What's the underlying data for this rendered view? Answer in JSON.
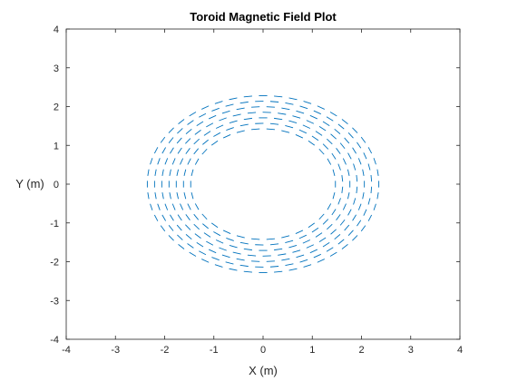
{
  "chart_data": {
    "type": "quiver",
    "title": "Toroid Magnetic Field Plot",
    "xlabel": "X (m)",
    "ylabel": "Y (m)",
    "xlim": [
      -4,
      4
    ],
    "ylim": [
      -4,
      4
    ],
    "xticks": [
      -4,
      -3,
      -2,
      -1,
      0,
      1,
      2,
      3,
      4
    ],
    "yticks": [
      -4,
      -3,
      -2,
      -1,
      0,
      1,
      2,
      3,
      4
    ],
    "grid": false,
    "box": true,
    "series": [
      {
        "color": "#0072BD",
        "field": "circulating-toroidal",
        "direction": "clockwise",
        "inner_radius": 1.5,
        "outer_radius": 2.4,
        "rings": 7,
        "arrows_per_ring": [
          30,
          33,
          36,
          39,
          42,
          45,
          48
        ],
        "x_squash": 0.98,
        "y_squash": 0.95
      }
    ]
  }
}
